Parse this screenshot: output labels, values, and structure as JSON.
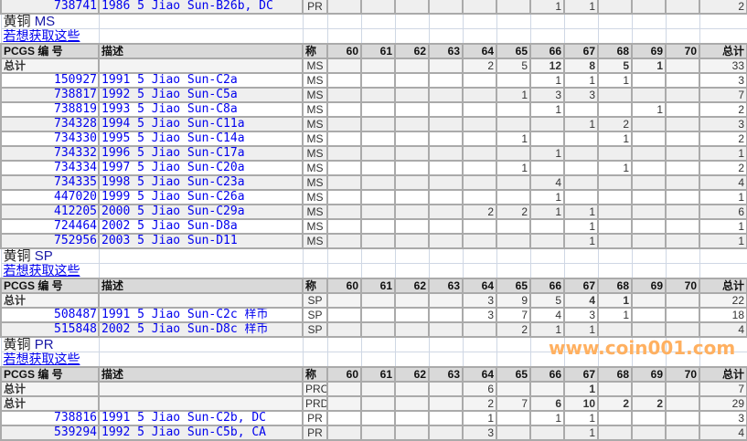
{
  "columns": {
    "pcgs": "PCGS 编 号",
    "desc": "描述",
    "des": "称",
    "grades": [
      "60",
      "61",
      "62",
      "63",
      "64",
      "65",
      "66",
      "67",
      "68",
      "69",
      "70"
    ],
    "total": "总计"
  },
  "total_label": "总计",
  "link_text": "若想获取这些",
  "top_row": {
    "pcgs": "738741",
    "desc": "1986 5 Jiao Sun-B26b, DC",
    "des": "PR",
    "g": [
      "",
      "",
      "",
      "",
      "",
      "",
      "1",
      "1",
      "",
      "",
      ""
    ],
    "total": "2"
  },
  "sections": [
    {
      "title_prefix": "黄铜",
      "title_grade": "MS",
      "totals": [
        {
          "des": "MS",
          "g": [
            "",
            "",
            "",
            "",
            "2",
            "5",
            "12",
            "8",
            "5",
            "1",
            ""
          ],
          "total": "33"
        }
      ],
      "rows": [
        {
          "pcgs": "150927",
          "desc": "1991 5 Jiao Sun-C2a",
          "des": "MS",
          "g": [
            "",
            "",
            "",
            "",
            "",
            "",
            "1",
            "1",
            "1",
            "",
            ""
          ],
          "total": "3"
        },
        {
          "pcgs": "738817",
          "desc": "1992 5 Jiao Sun-C5a",
          "des": "MS",
          "g": [
            "",
            "",
            "",
            "",
            "",
            "1",
            "3",
            "3",
            "",
            "",
            ""
          ],
          "total": "7"
        },
        {
          "pcgs": "738819",
          "desc": "1993 5 Jiao Sun-C8a",
          "des": "MS",
          "g": [
            "",
            "",
            "",
            "",
            "",
            "",
            "1",
            "",
            "",
            "1",
            ""
          ],
          "total": "2"
        },
        {
          "pcgs": "734328",
          "desc": "1994 5 Jiao Sun-C11a",
          "des": "MS",
          "g": [
            "",
            "",
            "",
            "",
            "",
            "",
            "",
            "1",
            "2",
            "",
            ""
          ],
          "total": "3"
        },
        {
          "pcgs": "734330",
          "desc": "1995 5 Jiao Sun-C14a",
          "des": "MS",
          "g": [
            "",
            "",
            "",
            "",
            "",
            "1",
            "",
            "",
            "1",
            "",
            ""
          ],
          "total": "2"
        },
        {
          "pcgs": "734332",
          "desc": "1996 5 Jiao Sun-C17a",
          "des": "MS",
          "g": [
            "",
            "",
            "",
            "",
            "",
            "",
            "1",
            "",
            "",
            "",
            ""
          ],
          "total": "1"
        },
        {
          "pcgs": "734334",
          "desc": "1997 5 Jiao Sun-C20a",
          "des": "MS",
          "g": [
            "",
            "",
            "",
            "",
            "",
            "1",
            "",
            "",
            "1",
            "",
            ""
          ],
          "total": "2"
        },
        {
          "pcgs": "734335",
          "desc": "1998 5 Jiao Sun-C23a",
          "des": "MS",
          "g": [
            "",
            "",
            "",
            "",
            "",
            "",
            "4",
            "",
            "",
            "",
            ""
          ],
          "total": "4"
        },
        {
          "pcgs": "447020",
          "desc": "1999 5 Jiao Sun-C26a",
          "des": "MS",
          "g": [
            "",
            "",
            "",
            "",
            "",
            "",
            "1",
            "",
            "",
            "",
            ""
          ],
          "total": "1"
        },
        {
          "pcgs": "412205",
          "desc": "2000 5 Jiao Sun-C29a",
          "des": "MS",
          "g": [
            "",
            "",
            "",
            "",
            "2",
            "2",
            "1",
            "1",
            "",
            "",
            ""
          ],
          "total": "6"
        },
        {
          "pcgs": "724464",
          "desc": "2002 5 Jiao Sun-D8a",
          "des": "MS",
          "g": [
            "",
            "",
            "",
            "",
            "",
            "",
            "",
            "1",
            "",
            "",
            ""
          ],
          "total": "1"
        },
        {
          "pcgs": "752956",
          "desc": "2003 5 Jiao Sun-D11",
          "des": "MS",
          "g": [
            "",
            "",
            "",
            "",
            "",
            "",
            "",
            "1",
            "",
            "",
            ""
          ],
          "total": "1"
        }
      ]
    },
    {
      "title_prefix": "黄铜",
      "title_grade": "SP",
      "totals": [
        {
          "des": "SP",
          "g": [
            "",
            "",
            "",
            "",
            "3",
            "9",
            "5",
            "4",
            "1",
            "",
            ""
          ],
          "total": "22"
        }
      ],
      "rows": [
        {
          "pcgs": "508487",
          "desc": "1991 5 Jiao Sun-C2c 样币",
          "des": "SP",
          "g": [
            "",
            "",
            "",
            "",
            "3",
            "7",
            "4",
            "3",
            "1",
            "",
            ""
          ],
          "total": "18"
        },
        {
          "pcgs": "515848",
          "desc": "2002 5 Jiao Sun-D8c 样币",
          "des": "SP",
          "g": [
            "",
            "",
            "",
            "",
            "",
            "2",
            "1",
            "1",
            "",
            "",
            ""
          ],
          "total": "4"
        }
      ]
    },
    {
      "title_prefix": "黄铜",
      "title_grade": "PR",
      "totals": [
        {
          "des": "PRC",
          "g": [
            "",
            "",
            "",
            "",
            "6",
            "",
            "",
            "1",
            "",
            "",
            ""
          ],
          "total": "7"
        },
        {
          "des": "PRD",
          "g": [
            "",
            "",
            "",
            "",
            "2",
            "7",
            "6",
            "10",
            "2",
            "2",
            ""
          ],
          "total": "29"
        }
      ],
      "rows": [
        {
          "pcgs": "738816",
          "desc": "1991 5 Jiao Sun-C2b, DC",
          "des": "PR",
          "g": [
            "",
            "",
            "",
            "",
            "1",
            "",
            "1",
            "1",
            "",
            "",
            ""
          ],
          "total": "3"
        },
        {
          "pcgs": "539294",
          "desc": "1992 5 Jiao Sun-C5b, CA",
          "des": "PR",
          "g": [
            "",
            "",
            "",
            "",
            "3",
            "",
            "",
            "1",
            "",
            "",
            ""
          ],
          "total": "4"
        }
      ]
    }
  ],
  "watermark": "www.coin001.com"
}
